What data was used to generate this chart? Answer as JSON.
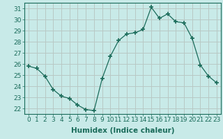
{
  "x": [
    0,
    1,
    2,
    3,
    4,
    5,
    6,
    7,
    8,
    9,
    10,
    11,
    12,
    13,
    14,
    15,
    16,
    17,
    18,
    19,
    20,
    21,
    22,
    23
  ],
  "y": [
    25.8,
    25.6,
    24.9,
    23.7,
    23.1,
    22.9,
    22.3,
    21.9,
    21.8,
    24.7,
    26.7,
    28.1,
    28.7,
    28.8,
    29.1,
    31.1,
    30.1,
    30.5,
    29.8,
    29.7,
    28.3,
    25.9,
    24.9,
    24.3
  ],
  "line_color": "#1a6b5a",
  "marker": "+",
  "marker_size": 4,
  "marker_lw": 1.2,
  "bg_color": "#c8eae8",
  "grid_color": "#b8c8c4",
  "xlabel": "Humidex (Indice chaleur)",
  "ylabel_ticks": [
    22,
    23,
    24,
    25,
    26,
    27,
    28,
    29,
    30,
    31
  ],
  "xlim": [
    -0.5,
    23.5
  ],
  "ylim": [
    21.5,
    31.5
  ],
  "xlabel_fontsize": 7.5,
  "tick_fontsize": 6.5,
  "title": ""
}
